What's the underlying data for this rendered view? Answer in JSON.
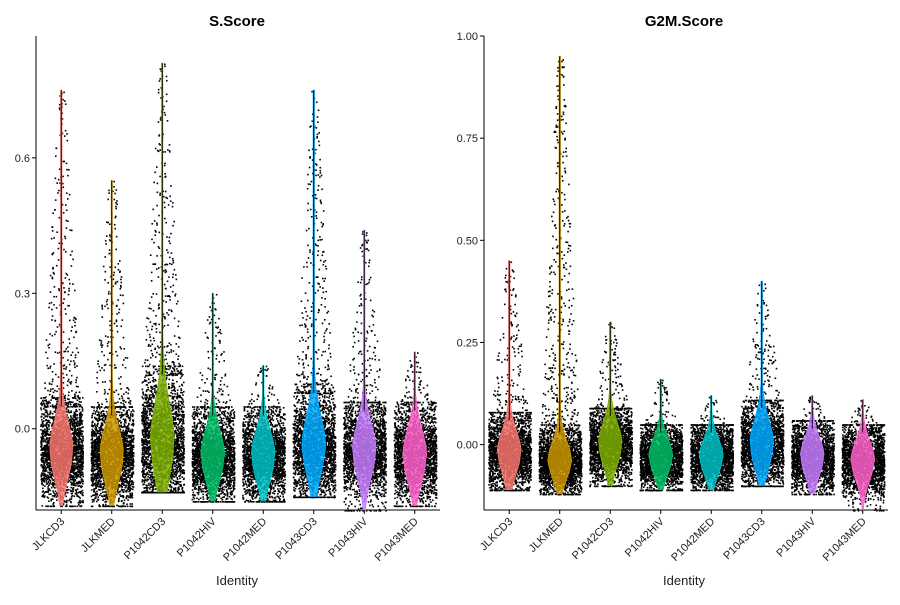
{
  "chart_data": [
    {
      "type": "violin",
      "title": "S.Score",
      "xlabel": "Identity",
      "ylabel": "",
      "ylim": [
        -0.18,
        0.87
      ],
      "yticks": [
        -0.0,
        0.3,
        0.6
      ],
      "ytick_labels": [
        "0.0",
        "0.3",
        "0.6"
      ],
      "categories": [
        "JLKCD3",
        "JLKMED",
        "P1042CD3",
        "P1042HIV",
        "P1042MED",
        "P1043CD3",
        "P1043HIV",
        "P1043MED"
      ],
      "colors": [
        "#F8766D",
        "#CD9600",
        "#7CAE00",
        "#00BE67",
        "#00BFC4",
        "#00A9FF",
        "#C77CFF",
        "#FF61CC"
      ],
      "series": [
        {
          "category": "JLKCD3",
          "median": -0.05,
          "min": -0.17,
          "max": 0.75,
          "bulk_low": -0.12,
          "bulk_high": 0.05
        },
        {
          "category": "JLKMED",
          "median": -0.06,
          "min": -0.17,
          "max": 0.55,
          "bulk_low": -0.14,
          "bulk_high": 0.03
        },
        {
          "category": "P1042CD3",
          "median": -0.03,
          "min": -0.14,
          "max": 0.81,
          "bulk_low": -0.12,
          "bulk_high": 0.12
        },
        {
          "category": "P1042HIV",
          "median": -0.06,
          "min": -0.16,
          "max": 0.3,
          "bulk_low": -0.13,
          "bulk_high": 0.03
        },
        {
          "category": "P1042MED",
          "median": -0.06,
          "min": -0.16,
          "max": 0.14,
          "bulk_low": -0.13,
          "bulk_high": 0.03
        },
        {
          "category": "P1043CD3",
          "median": -0.04,
          "min": -0.15,
          "max": 0.75,
          "bulk_low": -0.11,
          "bulk_high": 0.08
        },
        {
          "category": "P1043HIV",
          "median": -0.05,
          "min": -0.18,
          "max": 0.44,
          "bulk_low": -0.13,
          "bulk_high": 0.04
        },
        {
          "category": "P1043MED",
          "median": -0.06,
          "min": -0.17,
          "max": 0.17,
          "bulk_low": -0.13,
          "bulk_high": 0.04
        }
      ],
      "grid": false,
      "legend": "none"
    },
    {
      "type": "violin",
      "title": "G2M.Score",
      "xlabel": "Identity",
      "ylabel": "",
      "ylim": [
        -0.16,
        1.0
      ],
      "yticks": [
        0.0,
        0.25,
        0.5,
        0.75,
        1.0
      ],
      "ytick_labels": [
        "0.00",
        "0.25",
        "0.50",
        "0.75",
        "1.00"
      ],
      "categories": [
        "JLKCD3",
        "JLKMED",
        "P1042CD3",
        "P1042HIV",
        "P1042MED",
        "P1043CD3",
        "P1043HIV",
        "P1043MED"
      ],
      "colors": [
        "#F8766D",
        "#CD9600",
        "#7CAE00",
        "#00BE67",
        "#00BFC4",
        "#00A9FF",
        "#C77CFF",
        "#FF61CC"
      ],
      "series": [
        {
          "category": "JLKCD3",
          "median": -0.02,
          "min": -0.11,
          "max": 0.45,
          "bulk_low": -0.09,
          "bulk_high": 0.06
        },
        {
          "category": "JLKMED",
          "median": -0.04,
          "min": -0.12,
          "max": 0.95,
          "bulk_low": -0.1,
          "bulk_high": 0.03
        },
        {
          "category": "P1042CD3",
          "median": 0.0,
          "min": -0.1,
          "max": 0.3,
          "bulk_low": -0.08,
          "bulk_high": 0.07
        },
        {
          "category": "P1042HIV",
          "median": -0.03,
          "min": -0.11,
          "max": 0.16,
          "bulk_low": -0.1,
          "bulk_high": 0.03
        },
        {
          "category": "P1042MED",
          "median": -0.03,
          "min": -0.11,
          "max": 0.12,
          "bulk_low": -0.1,
          "bulk_high": 0.03
        },
        {
          "category": "P1043CD3",
          "median": 0.0,
          "min": -0.1,
          "max": 0.4,
          "bulk_low": -0.08,
          "bulk_high": 0.09
        },
        {
          "category": "P1043HIV",
          "median": -0.03,
          "min": -0.12,
          "max": 0.12,
          "bulk_low": -0.1,
          "bulk_high": 0.04
        },
        {
          "category": "P1043MED",
          "median": -0.04,
          "min": -0.16,
          "max": 0.11,
          "bulk_low": -0.11,
          "bulk_high": 0.03
        }
      ],
      "grid": false,
      "legend": "none"
    }
  ]
}
